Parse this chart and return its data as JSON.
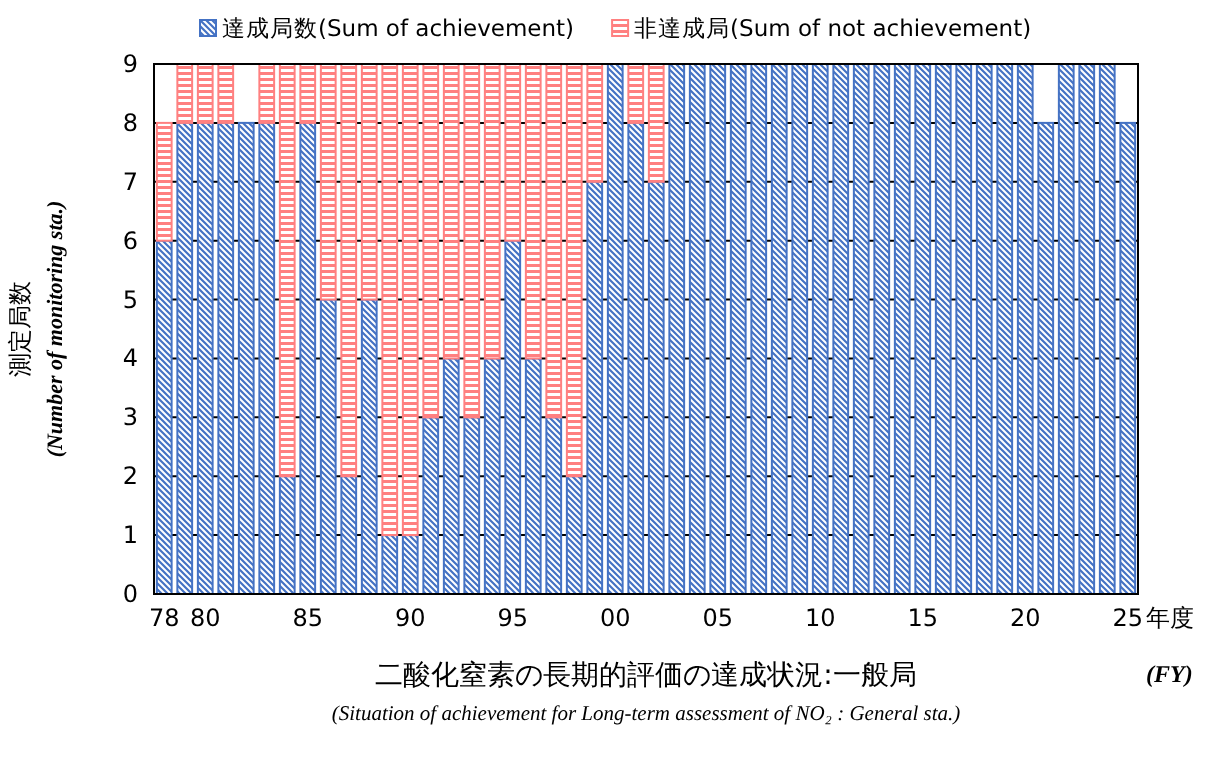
{
  "chart_data": {
    "type": "bar",
    "stacked": true,
    "title": "二酸化窒素の長期的評価の達成状況:一般局",
    "subtitle": "(Situation of achievement for Long-term assessment of NO₂ : General sta.)",
    "xlabel": "年度\n(FY)",
    "ylabel": "測定局数\n(Number of monitoring sta.)",
    "categories": [
      "78",
      null,
      "80",
      null,
      null,
      null,
      null,
      "85",
      null,
      null,
      null,
      null,
      "90",
      null,
      null,
      null,
      null,
      "95",
      null,
      null,
      null,
      null,
      "00",
      null,
      null,
      null,
      null,
      "05",
      null,
      null,
      null,
      null,
      "10",
      null,
      null,
      null,
      null,
      "15",
      null,
      null,
      null,
      null,
      "20",
      null,
      null,
      null,
      null,
      "25"
    ],
    "series": [
      {
        "name": "達成局数(Sum of achievement)",
        "color": "#4472c4",
        "values": [
          6,
          8,
          8,
          8,
          8,
          8,
          2,
          8,
          5,
          2,
          5,
          1,
          1,
          3,
          4,
          3,
          4,
          6,
          4,
          3,
          2,
          7,
          9,
          8,
          7,
          9,
          9,
          9,
          9,
          9,
          9,
          9,
          9,
          9,
          9,
          9,
          9,
          9,
          9,
          9,
          9,
          9,
          9,
          8,
          9,
          9,
          9,
          8
        ]
      },
      {
        "name": "非達成局(Sum of not achievement)",
        "color": "#ff8080",
        "values": [
          2,
          1,
          1,
          1,
          0,
          1,
          7,
          1,
          4,
          7,
          4,
          8,
          8,
          6,
          5,
          6,
          5,
          3,
          5,
          6,
          7,
          2,
          0,
          1,
          2,
          0,
          0,
          0,
          0,
          0,
          0,
          0,
          0,
          0,
          0,
          0,
          0,
          0,
          0,
          0,
          0,
          0,
          0,
          0,
          0,
          0,
          0,
          0
        ]
      }
    ],
    "ylim": [
      0,
      9
    ],
    "yticks": [
      0,
      1,
      2,
      3,
      4,
      5,
      6,
      7,
      8,
      9
    ],
    "grid": "y",
    "legend": "top"
  }
}
